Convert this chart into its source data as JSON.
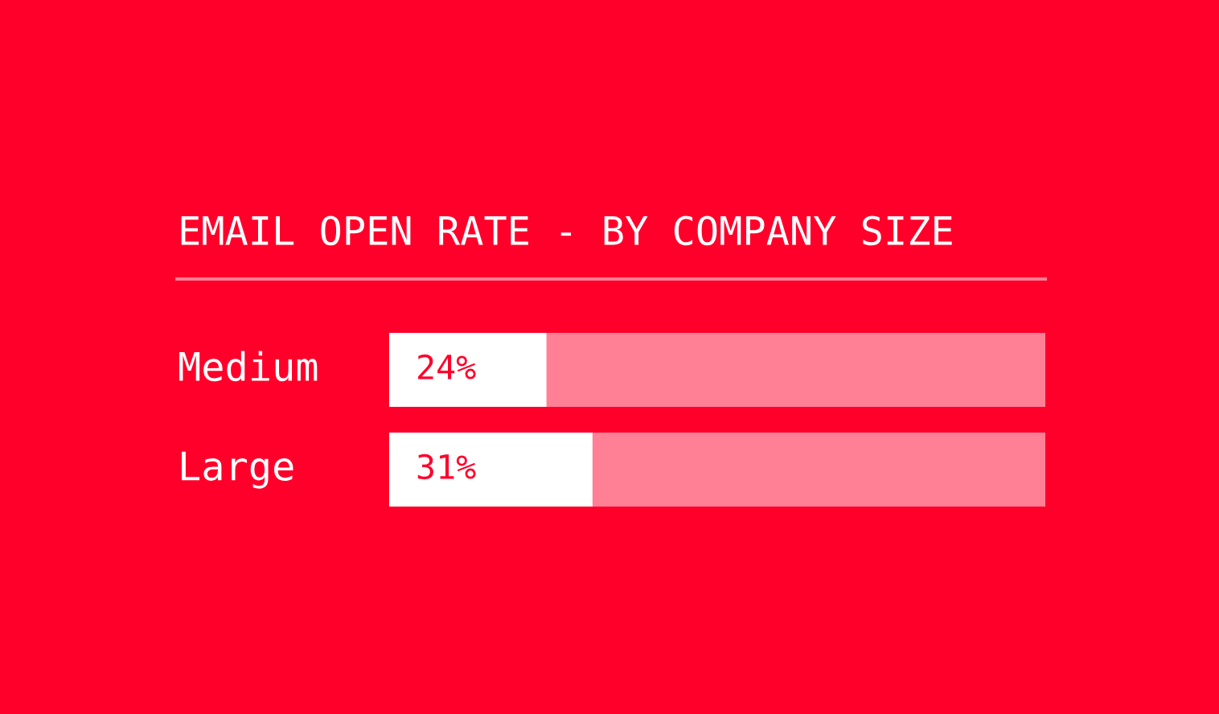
{
  "chart_data": {
    "type": "bar",
    "orientation": "horizontal",
    "stacked": true,
    "title": "EMAIL OPEN RATE - BY COMPANY SIZE",
    "categories": [
      "Medium",
      "Large"
    ],
    "series": [
      {
        "color": "#ffffff",
        "values": [
          24,
          31
        ],
        "value_labels": [
          "24%",
          "31%"
        ]
      },
      {
        "color": "#ff8095",
        "values": [
          76,
          69
        ]
      }
    ]
  }
}
